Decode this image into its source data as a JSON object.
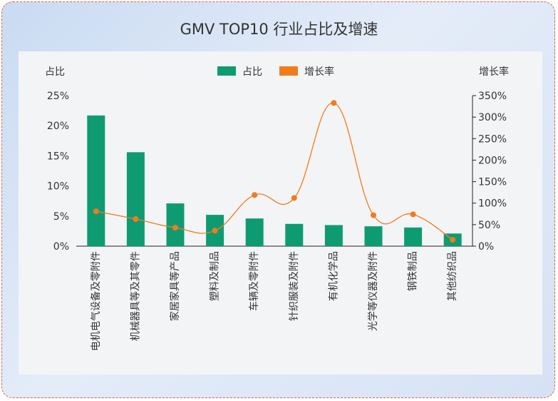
{
  "chart_data": {
    "type": "bar",
    "title": "GMV TOP10 行业占比及增速",
    "categories": [
      "电机电气设备及零附件",
      "机械器具等及其零件",
      "家居家具等产品",
      "塑料及制品",
      "车辆及零附件",
      "针织服装及附件",
      "有机化学品",
      "光学等仪器及附件",
      "钢铁制品",
      "其他纺织品"
    ],
    "series": [
      {
        "name": "占比",
        "type": "bar",
        "axis": "left",
        "color": "#0f9b72",
        "values": [
          21.7,
          15.6,
          7.1,
          5.2,
          4.6,
          3.7,
          3.5,
          3.3,
          3.1,
          2.1
        ]
      },
      {
        "name": "增长率",
        "type": "line",
        "axis": "right",
        "color": "#f07c1c",
        "values": [
          81,
          63,
          43,
          36,
          119,
          112,
          333,
          72,
          74,
          15
        ]
      }
    ],
    "left_axis": {
      "label": "占比",
      "ylim": [
        0,
        25
      ],
      "ticks": [
        "0%",
        "5%",
        "10%",
        "15%",
        "20%",
        "25%"
      ]
    },
    "right_axis": {
      "label": "增长率",
      "ylim": [
        0,
        350
      ],
      "ticks": [
        "0%",
        "50%",
        "100%",
        "150%",
        "200%",
        "250%",
        "300%",
        "350%"
      ]
    },
    "legend": "top-center"
  }
}
